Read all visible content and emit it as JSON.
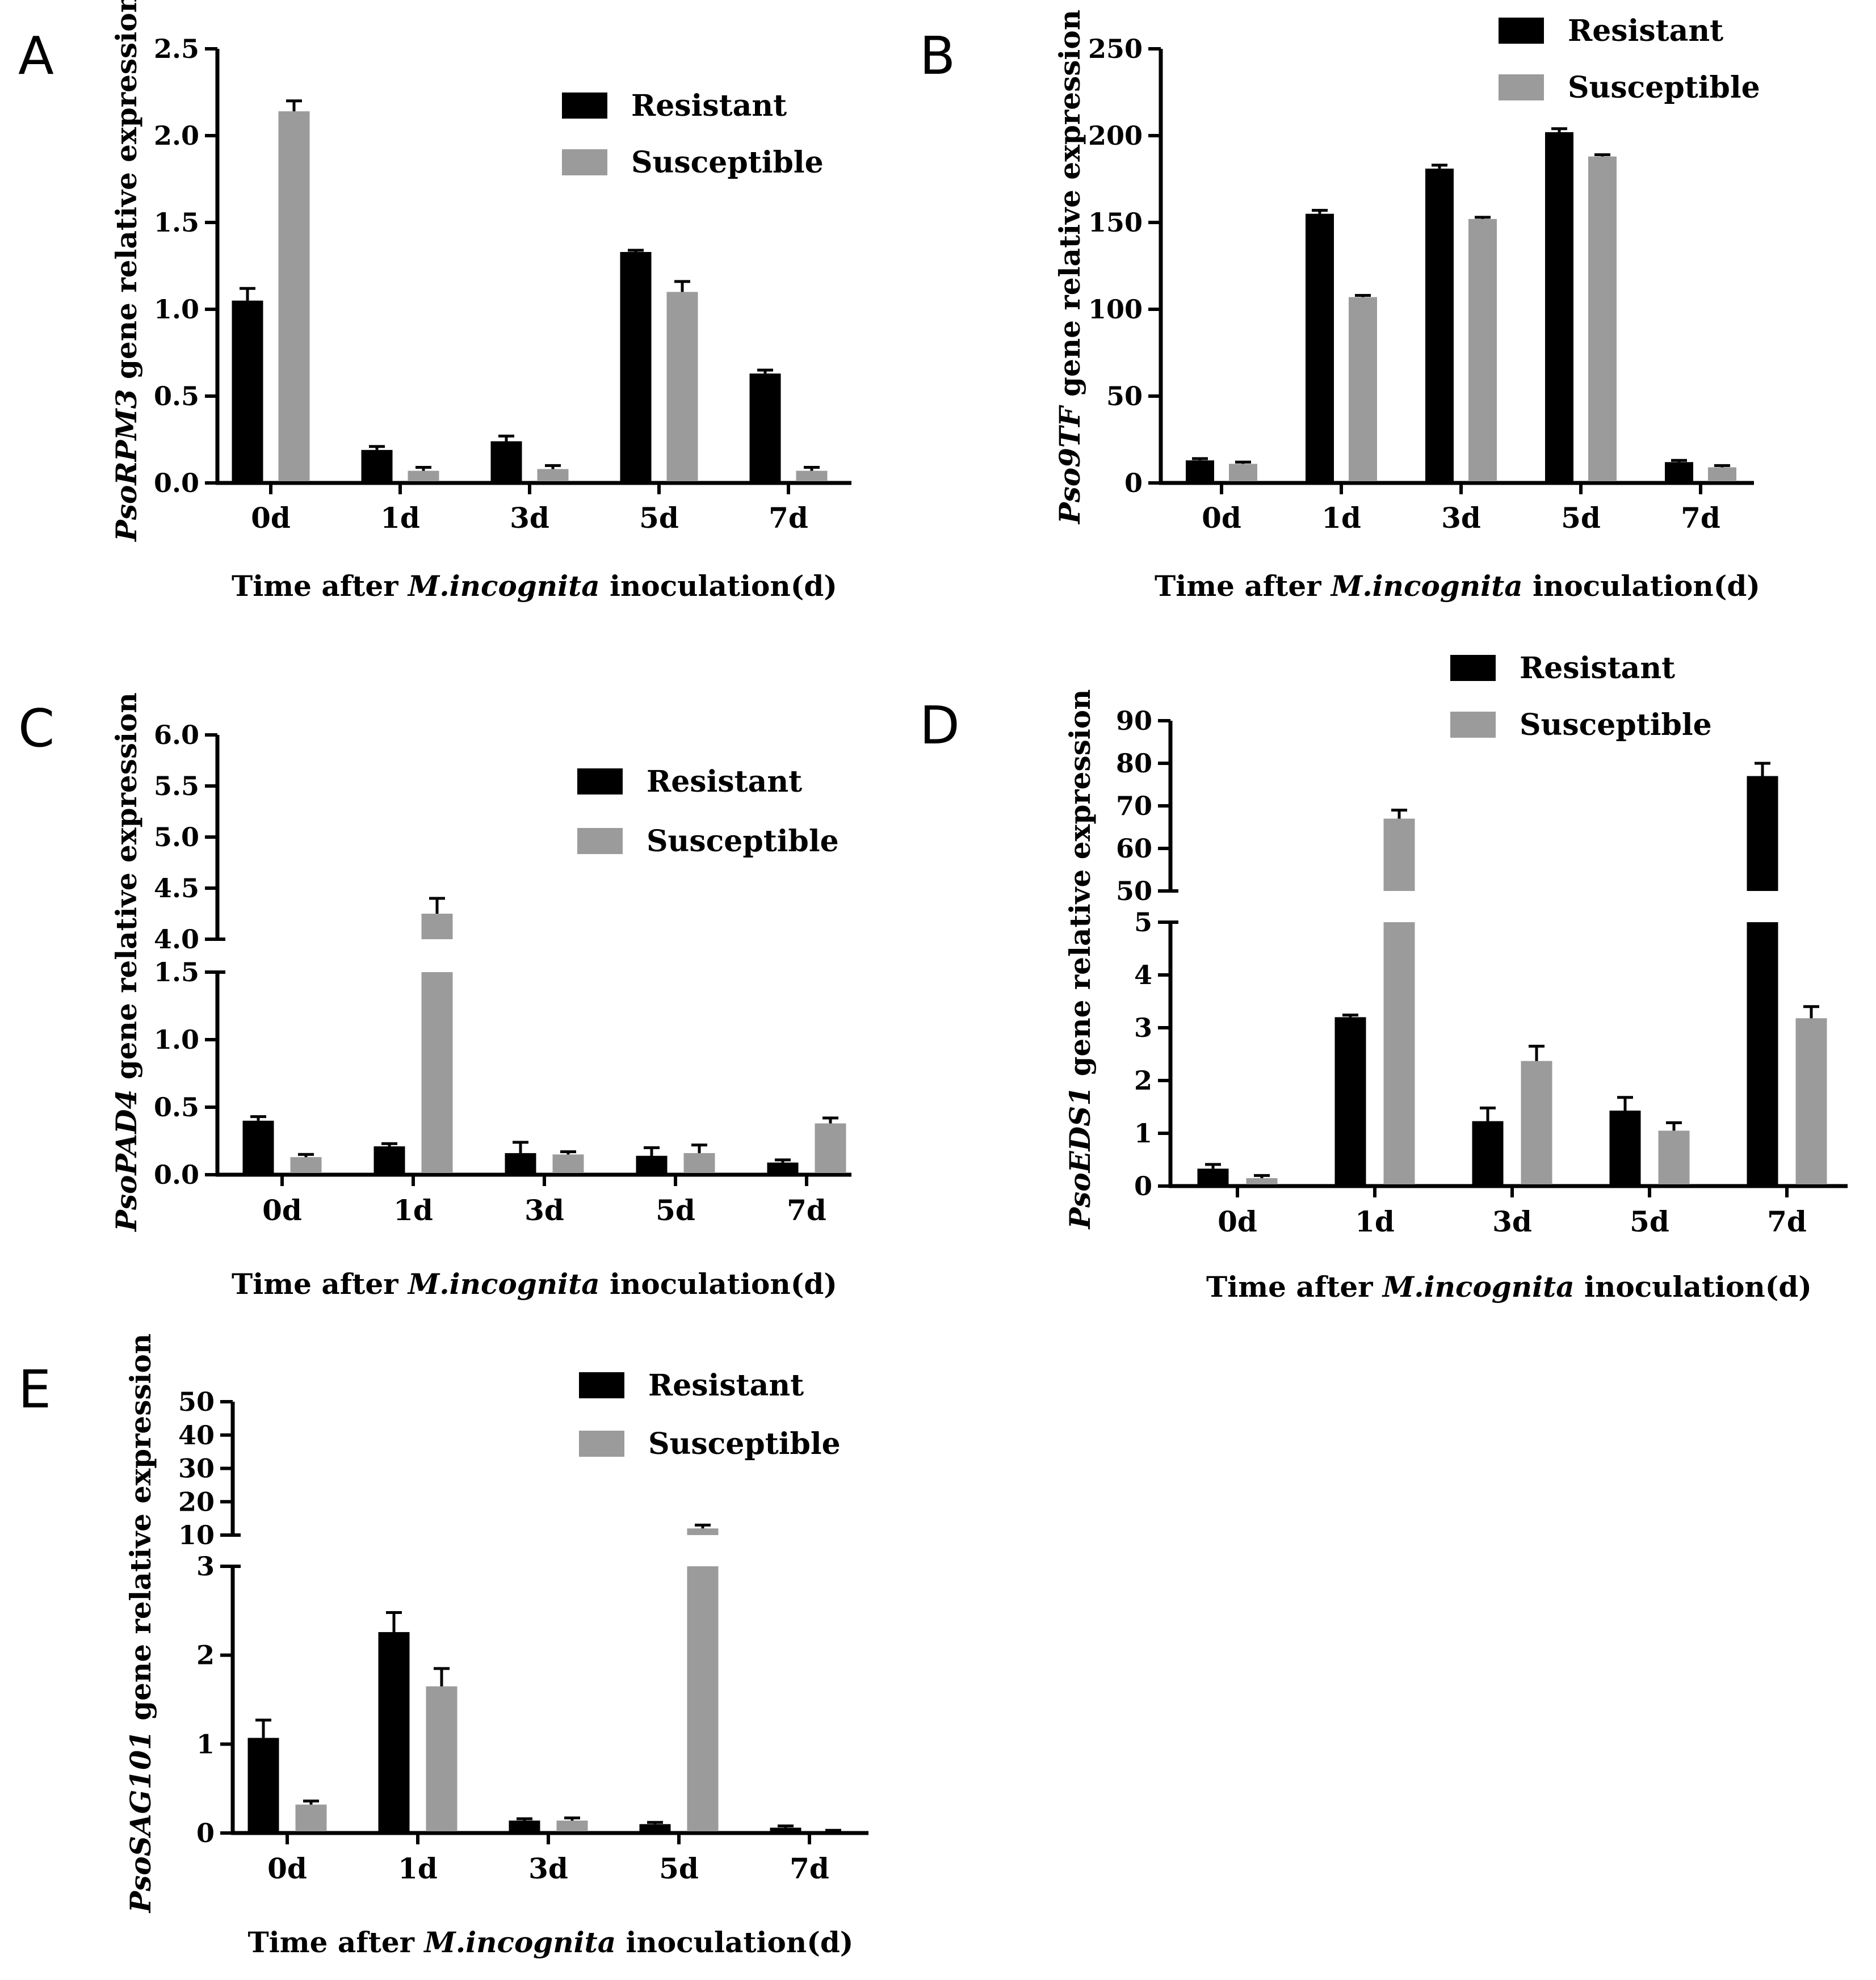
{
  "chart_data": [
    {
      "panel": "A",
      "type": "bar",
      "categories": [
        "0d",
        "1d",
        "3d",
        "5d",
        "7d"
      ],
      "series": [
        {
          "name": "Resistant",
          "color": "#000000",
          "values": [
            1.05,
            0.19,
            0.24,
            1.33,
            0.63
          ],
          "errors": [
            0.07,
            0.02,
            0.03,
            0.01,
            0.02
          ]
        },
        {
          "name": "Susceptible",
          "color": "#9b9b9b",
          "values": [
            2.14,
            0.07,
            0.08,
            1.1,
            0.07
          ],
          "errors": [
            0.06,
            0.02,
            0.02,
            0.06,
            0.02
          ]
        }
      ],
      "ylabel_gene": "PsoRPM3",
      "ylabel_rest": " gene relative expression",
      "xlabel_pre": "Time after ",
      "xlabel_species": "M.incognita",
      "xlabel_post": " inoculation(d)",
      "segments": [
        {
          "range": [
            0,
            2.5
          ],
          "ticks": [
            "0.0",
            "0.5",
            "1.0",
            "1.5",
            "2.0",
            "2.5"
          ]
        }
      ]
    },
    {
      "panel": "B",
      "type": "bar",
      "categories": [
        "0d",
        "1d",
        "3d",
        "5d",
        "7d"
      ],
      "series": [
        {
          "name": "Resistant",
          "color": "#000000",
          "values": [
            13,
            155,
            181,
            202,
            12
          ],
          "errors": [
            1,
            2,
            2,
            2,
            1
          ]
        },
        {
          "name": "Susceptible",
          "color": "#9b9b9b",
          "values": [
            11,
            107,
            152,
            188,
            9
          ],
          "errors": [
            1,
            1,
            1,
            1,
            1
          ]
        }
      ],
      "ylabel_gene": "Pso9TF",
      "ylabel_rest": " gene relative expression",
      "xlabel_pre": "Time after ",
      "xlabel_species": "M.incognita",
      "xlabel_post": " inoculation(d)",
      "segments": [
        {
          "range": [
            0,
            250
          ],
          "ticks": [
            "0",
            "50",
            "100",
            "150",
            "200",
            "250"
          ]
        }
      ]
    },
    {
      "panel": "C",
      "type": "bar",
      "categories": [
        "0d",
        "1d",
        "3d",
        "5d",
        "7d"
      ],
      "series": [
        {
          "name": "Resistant",
          "color": "#000000",
          "values": [
            0.4,
            0.21,
            0.16,
            0.14,
            0.09
          ],
          "errors": [
            0.03,
            0.02,
            0.08,
            0.06,
            0.02
          ]
        },
        {
          "name": "Susceptible",
          "color": "#9b9b9b",
          "values": [
            0.13,
            4.25,
            0.15,
            0.16,
            0.38
          ],
          "errors": [
            0.02,
            0.15,
            0.02,
            0.06,
            0.04
          ]
        }
      ],
      "ylabel_gene": "PsoPAD4",
      "ylabel_rest": " gene relative expression",
      "xlabel_pre": "Time after ",
      "xlabel_species": "M.incognita",
      "xlabel_post": " inoculation(d)",
      "segments": [
        {
          "range": [
            0,
            1.5
          ],
          "ticks": [
            "0.0",
            "0.5",
            "1.0",
            "1.5"
          ]
        },
        {
          "range": [
            4.0,
            6.0
          ],
          "ticks": [
            "4.0",
            "4.5",
            "5.0",
            "5.5",
            "6.0"
          ]
        }
      ]
    },
    {
      "panel": "D",
      "type": "bar",
      "categories": [
        "0d",
        "1d",
        "3d",
        "5d",
        "7d"
      ],
      "series": [
        {
          "name": "Resistant",
          "color": "#000000",
          "values": [
            0.33,
            3.2,
            1.23,
            1.43,
            77
          ],
          "errors": [
            0.08,
            0.04,
            0.25,
            0.25,
            3
          ]
        },
        {
          "name": "Susceptible",
          "color": "#9b9b9b",
          "values": [
            0.15,
            67,
            2.37,
            1.05,
            3.18
          ],
          "errors": [
            0.05,
            2,
            0.28,
            0.15,
            0.22
          ]
        }
      ],
      "ylabel_gene": "PsoEDS1",
      "ylabel_rest": " gene relative expression",
      "xlabel_pre": "Time after ",
      "xlabel_species": "M.incognita",
      "xlabel_post": " inoculation(d)",
      "segments": [
        {
          "range": [
            0,
            5
          ],
          "ticks": [
            "0",
            "1",
            "2",
            "3",
            "4",
            "5"
          ]
        },
        {
          "range": [
            50,
            90
          ],
          "ticks": [
            "50",
            "60",
            "70",
            "80",
            "90"
          ]
        }
      ]
    },
    {
      "panel": "E",
      "type": "bar",
      "categories": [
        "0d",
        "1d",
        "3d",
        "5d",
        "7d"
      ],
      "series": [
        {
          "name": "Resistant",
          "color": "#000000",
          "values": [
            1.07,
            2.26,
            0.14,
            0.1,
            0.06
          ],
          "errors": [
            0.2,
            0.22,
            0.02,
            0.02,
            0.02
          ]
        },
        {
          "name": "Susceptible",
          "color": "#9b9b9b",
          "values": [
            0.32,
            1.65,
            0.14,
            12,
            0.02
          ],
          "errors": [
            0.04,
            0.2,
            0.03,
            1,
            0.01
          ]
        }
      ],
      "ylabel_gene": "PsoSAG101",
      "ylabel_rest": " gene relative expression",
      "xlabel_pre": "Time after ",
      "xlabel_species": "M.incognita",
      "xlabel_post": " inoculation(d)",
      "segments": [
        {
          "range": [
            0,
            3
          ],
          "ticks": [
            "0",
            "1",
            "2",
            "3"
          ]
        },
        {
          "range": [
            10,
            50
          ],
          "ticks": [
            "10",
            "20",
            "30",
            "40",
            "50"
          ]
        }
      ]
    }
  ]
}
